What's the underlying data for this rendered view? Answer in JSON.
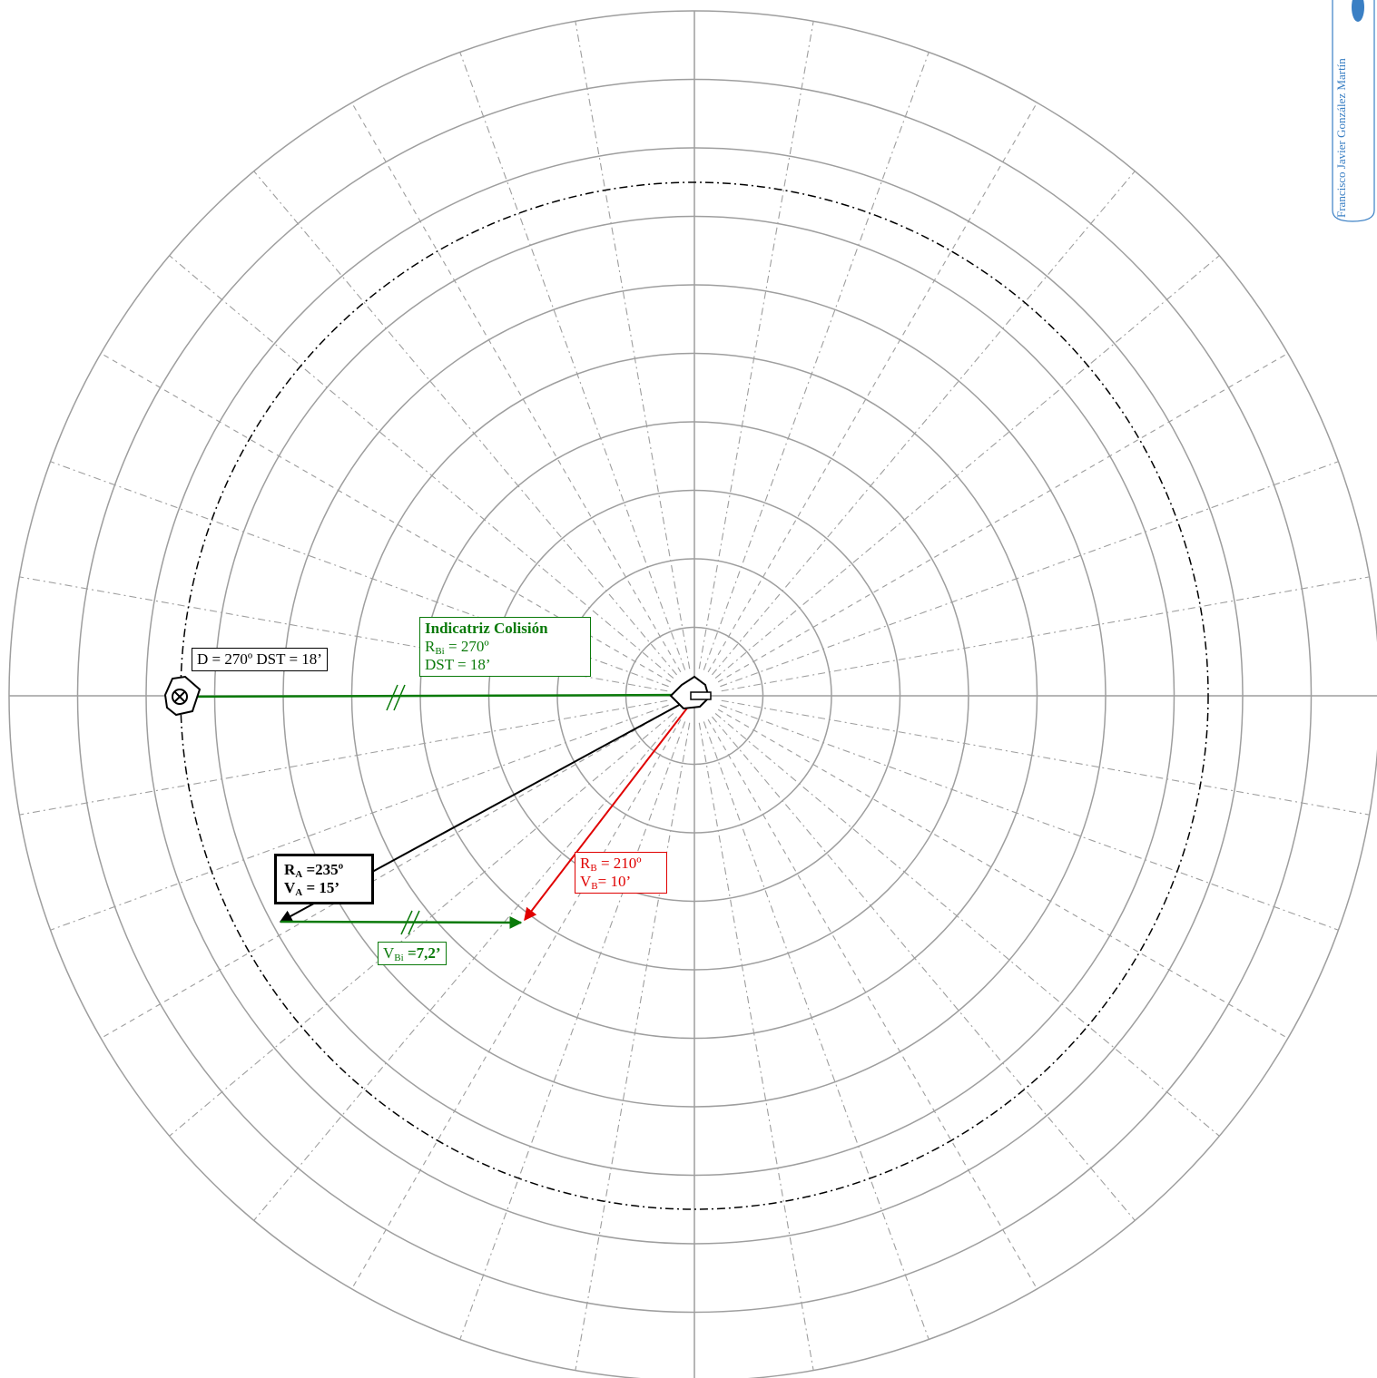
{
  "chart_data": {
    "type": "polar-radar-plot",
    "grid_rings": 10,
    "danger_circle_distance": 18,
    "own_ship": {
      "course_deg": 235,
      "speed": 15
    },
    "other_ship": {
      "bearing_deg": 270,
      "distance": 18,
      "course_deg": 210,
      "speed": 10
    },
    "relative_motion": {
      "course_deg": 270,
      "speed": 7.2
    }
  },
  "labels": {
    "target": "D = 270º DST = 18’",
    "collision_title": "Indicatriz Colisión",
    "collision_r": "R",
    "collision_r_sub": "Bi",
    "collision_r_val": " = 270º",
    "collision_dst": "DST = 18’",
    "ra_r": "R",
    "ra_r_sub": "A",
    "ra_r_val": " =235º",
    "ra_v": "V",
    "ra_v_sub": "A",
    "ra_v_val": " = 15’",
    "rb_r": "R",
    "rb_r_sub": "B",
    "rb_r_val": " = 210º",
    "rb_v": "V",
    "rb_v_sub": "B",
    "rb_v_val": "= 10’",
    "vbi_v": "V",
    "vbi_v_sub": "Bi",
    "vbi_val": " =7,2’"
  },
  "author": "Francisco Javier González Martín",
  "colors": {
    "grid": "#9e9e9e",
    "green": "#0a7a0a",
    "red": "#e00000",
    "black": "#000000",
    "author": "#3a7fc4"
  }
}
